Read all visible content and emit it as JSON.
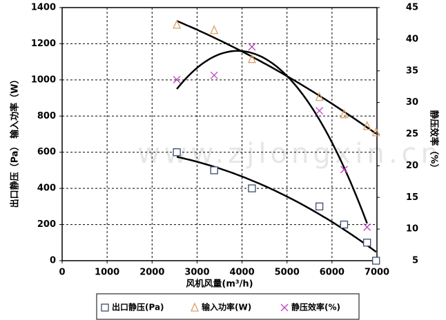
{
  "chart_data": {
    "type": "scatter",
    "x_label": "风机风量(m³/h)",
    "y_label": "出口静压（Pa） 输入功率（W）",
    "y2_label": "静压效率（%）",
    "watermark": "www.zjlongxin.cn",
    "xlim": [
      0,
      7000
    ],
    "xticks": [
      0,
      1000,
      2000,
      3000,
      4000,
      5000,
      6000,
      7000
    ],
    "ylim": [
      0,
      1400
    ],
    "yticks": [
      0,
      200,
      400,
      600,
      800,
      1000,
      1200,
      1400
    ],
    "y2lim": [
      5,
      45
    ],
    "y2ticks": [
      5,
      10,
      15,
      20,
      25,
      30,
      35,
      40,
      45
    ],
    "grid": true,
    "legend": "bottom",
    "series": [
      {
        "name": "出口静压(Pa)",
        "marker": "square",
        "color": "#3b4a6b",
        "trendline": 2,
        "x": [
          2550,
          3380,
          4220,
          5720,
          6270,
          6780,
          6980
        ],
        "values": [
          600,
          500,
          400,
          300,
          200,
          100,
          0
        ]
      },
      {
        "name": "输入功率(W)",
        "marker": "triangle",
        "color": "#d9a066",
        "trendline": 2,
        "x": [
          2550,
          3380,
          4220,
          5720,
          6270,
          6780,
          6980
        ],
        "values": [
          1305,
          1275,
          1115,
          905,
          810,
          745,
          710
        ]
      },
      {
        "name": "静压效率(%)",
        "marker": "cross",
        "color": "#c040c0",
        "trendline": 2,
        "axis": "y2",
        "x": [
          2550,
          3380,
          4220,
          5720,
          6270,
          6780
        ],
        "values": [
          33.6,
          34.3,
          38.8,
          28.7,
          19.4,
          10.3
        ]
      }
    ]
  }
}
